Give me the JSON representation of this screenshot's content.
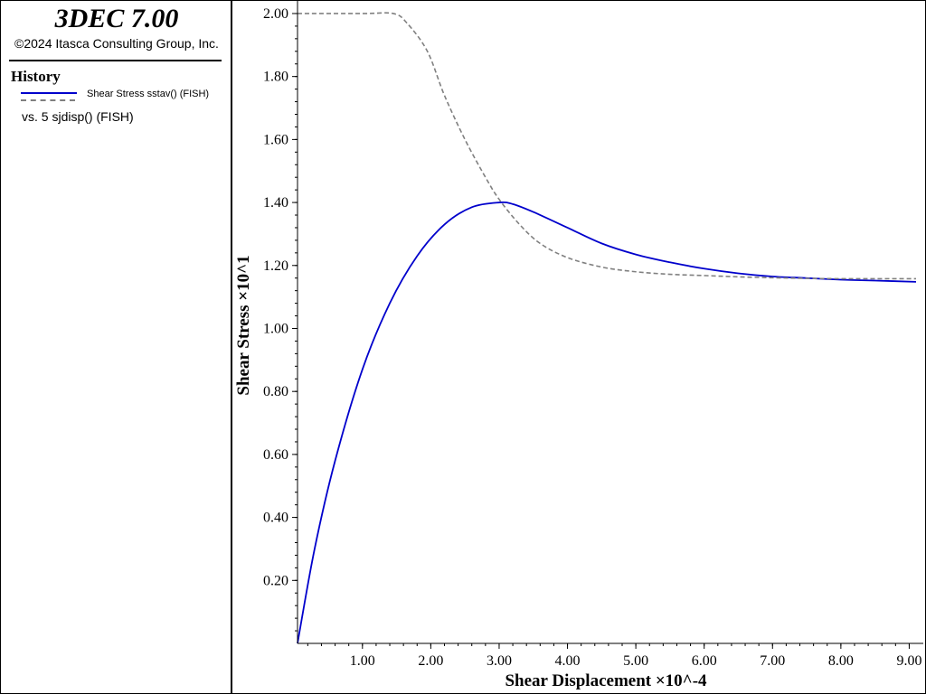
{
  "header": {
    "app_title": "3DEC 7.00",
    "copyright": "©2024 Itasca Consulting Group, Inc."
  },
  "legend": {
    "heading": "History",
    "series_1_label": "Shear Stress sstav() (FISH)",
    "series_2_label": "vs. 5 sjdisp() (FISH)"
  },
  "colors": {
    "series_1": "#0000cc",
    "series_2": "#808080"
  },
  "chart_data": {
    "type": "line",
    "xlabel": "Shear Displacement ×10^-4",
    "ylabel": "Shear Stress ×10^1",
    "xlim": [
      0.05,
      9.1
    ],
    "ylim": [
      0.0,
      2.02
    ],
    "xticks": [
      1.0,
      2.0,
      3.0,
      4.0,
      5.0,
      6.0,
      7.0,
      8.0,
      9.0
    ],
    "xtick_labels": [
      "1.00",
      "2.00",
      "3.00",
      "4.00",
      "5.00",
      "6.00",
      "7.00",
      "8.00",
      "9.00"
    ],
    "yticks": [
      0.2,
      0.4,
      0.6,
      0.8,
      1.0,
      1.2,
      1.4,
      1.6,
      1.8,
      2.0
    ],
    "ytick_labels": [
      "0.20",
      "0.40",
      "0.60",
      "0.80",
      "1.00",
      "1.20",
      "1.40",
      "1.60",
      "1.80",
      "2.00"
    ],
    "grid": false,
    "series": [
      {
        "name": "Shear Stress sstav() (FISH)",
        "style": "solid",
        "x": [
          0.05,
          0.3,
          0.6,
          1.0,
          1.4,
          1.8,
          2.2,
          2.6,
          3.0,
          3.2,
          3.5,
          4.0,
          4.5,
          5.0,
          5.5,
          6.0,
          6.5,
          7.0,
          7.5,
          8.0,
          8.5,
          9.1
        ],
        "y": [
          0.0,
          0.3,
          0.58,
          0.87,
          1.08,
          1.23,
          1.33,
          1.385,
          1.4,
          1.395,
          1.37,
          1.32,
          1.27,
          1.235,
          1.21,
          1.19,
          1.175,
          1.165,
          1.16,
          1.155,
          1.152,
          1.148
        ]
      },
      {
        "name": "vs. 5 sjdisp() (FISH)",
        "style": "dashed",
        "x": [
          0.05,
          1.0,
          1.45,
          1.65,
          1.95,
          2.2,
          2.5,
          2.8,
          3.0,
          3.3,
          3.6,
          4.0,
          4.5,
          5.0,
          5.5,
          6.0,
          6.5,
          7.0,
          7.5,
          8.0,
          8.5,
          9.1
        ],
        "y": [
          2.0,
          2.0,
          2.0,
          1.97,
          1.88,
          1.74,
          1.6,
          1.48,
          1.41,
          1.33,
          1.27,
          1.225,
          1.195,
          1.18,
          1.172,
          1.168,
          1.164,
          1.161,
          1.159,
          1.158,
          1.158,
          1.158
        ]
      }
    ]
  }
}
